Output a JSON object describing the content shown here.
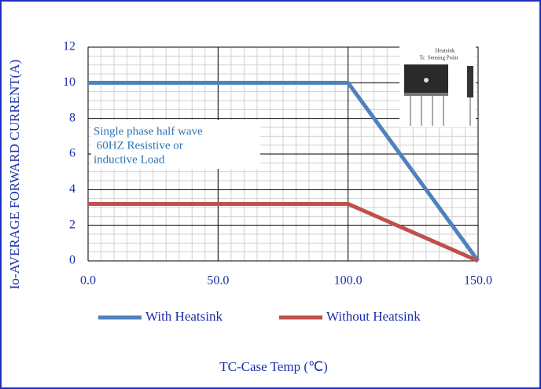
{
  "chart_data": {
    "type": "line",
    "x_label": "TC-Case Temp (℃)",
    "y_label": "Io-AVERAGE FORWARD CURRENT(A)",
    "xlim": [
      0,
      150
    ],
    "ylim": [
      0,
      12
    ],
    "xticks": [
      {
        "value": 0,
        "label": "0.0"
      },
      {
        "value": 50,
        "label": "50.0"
      },
      {
        "value": 100,
        "label": "100.0"
      },
      {
        "value": 150,
        "label": "150.0"
      }
    ],
    "yticks": [
      0,
      2,
      4,
      6,
      8,
      10,
      12
    ],
    "grid": true,
    "minor_grid": {
      "x": 5,
      "y": 0.5
    },
    "legend": "bottom",
    "series": [
      {
        "name": "With Heatsink",
        "color": "#4f81bd",
        "x": [
          0,
          100,
          150
        ],
        "values": [
          10,
          10,
          0
        ]
      },
      {
        "name": "Without Heatsink",
        "color": "#c0504d",
        "x": [
          0,
          100,
          150
        ],
        "values": [
          3.2,
          3.2,
          0
        ]
      }
    ],
    "annotation": [
      "Single phase half wave",
      " 60HZ Resistive or",
      "inductive Load"
    ],
    "inset_labels": [
      "Heatsink",
      "Tc  Sensing Point"
    ]
  }
}
